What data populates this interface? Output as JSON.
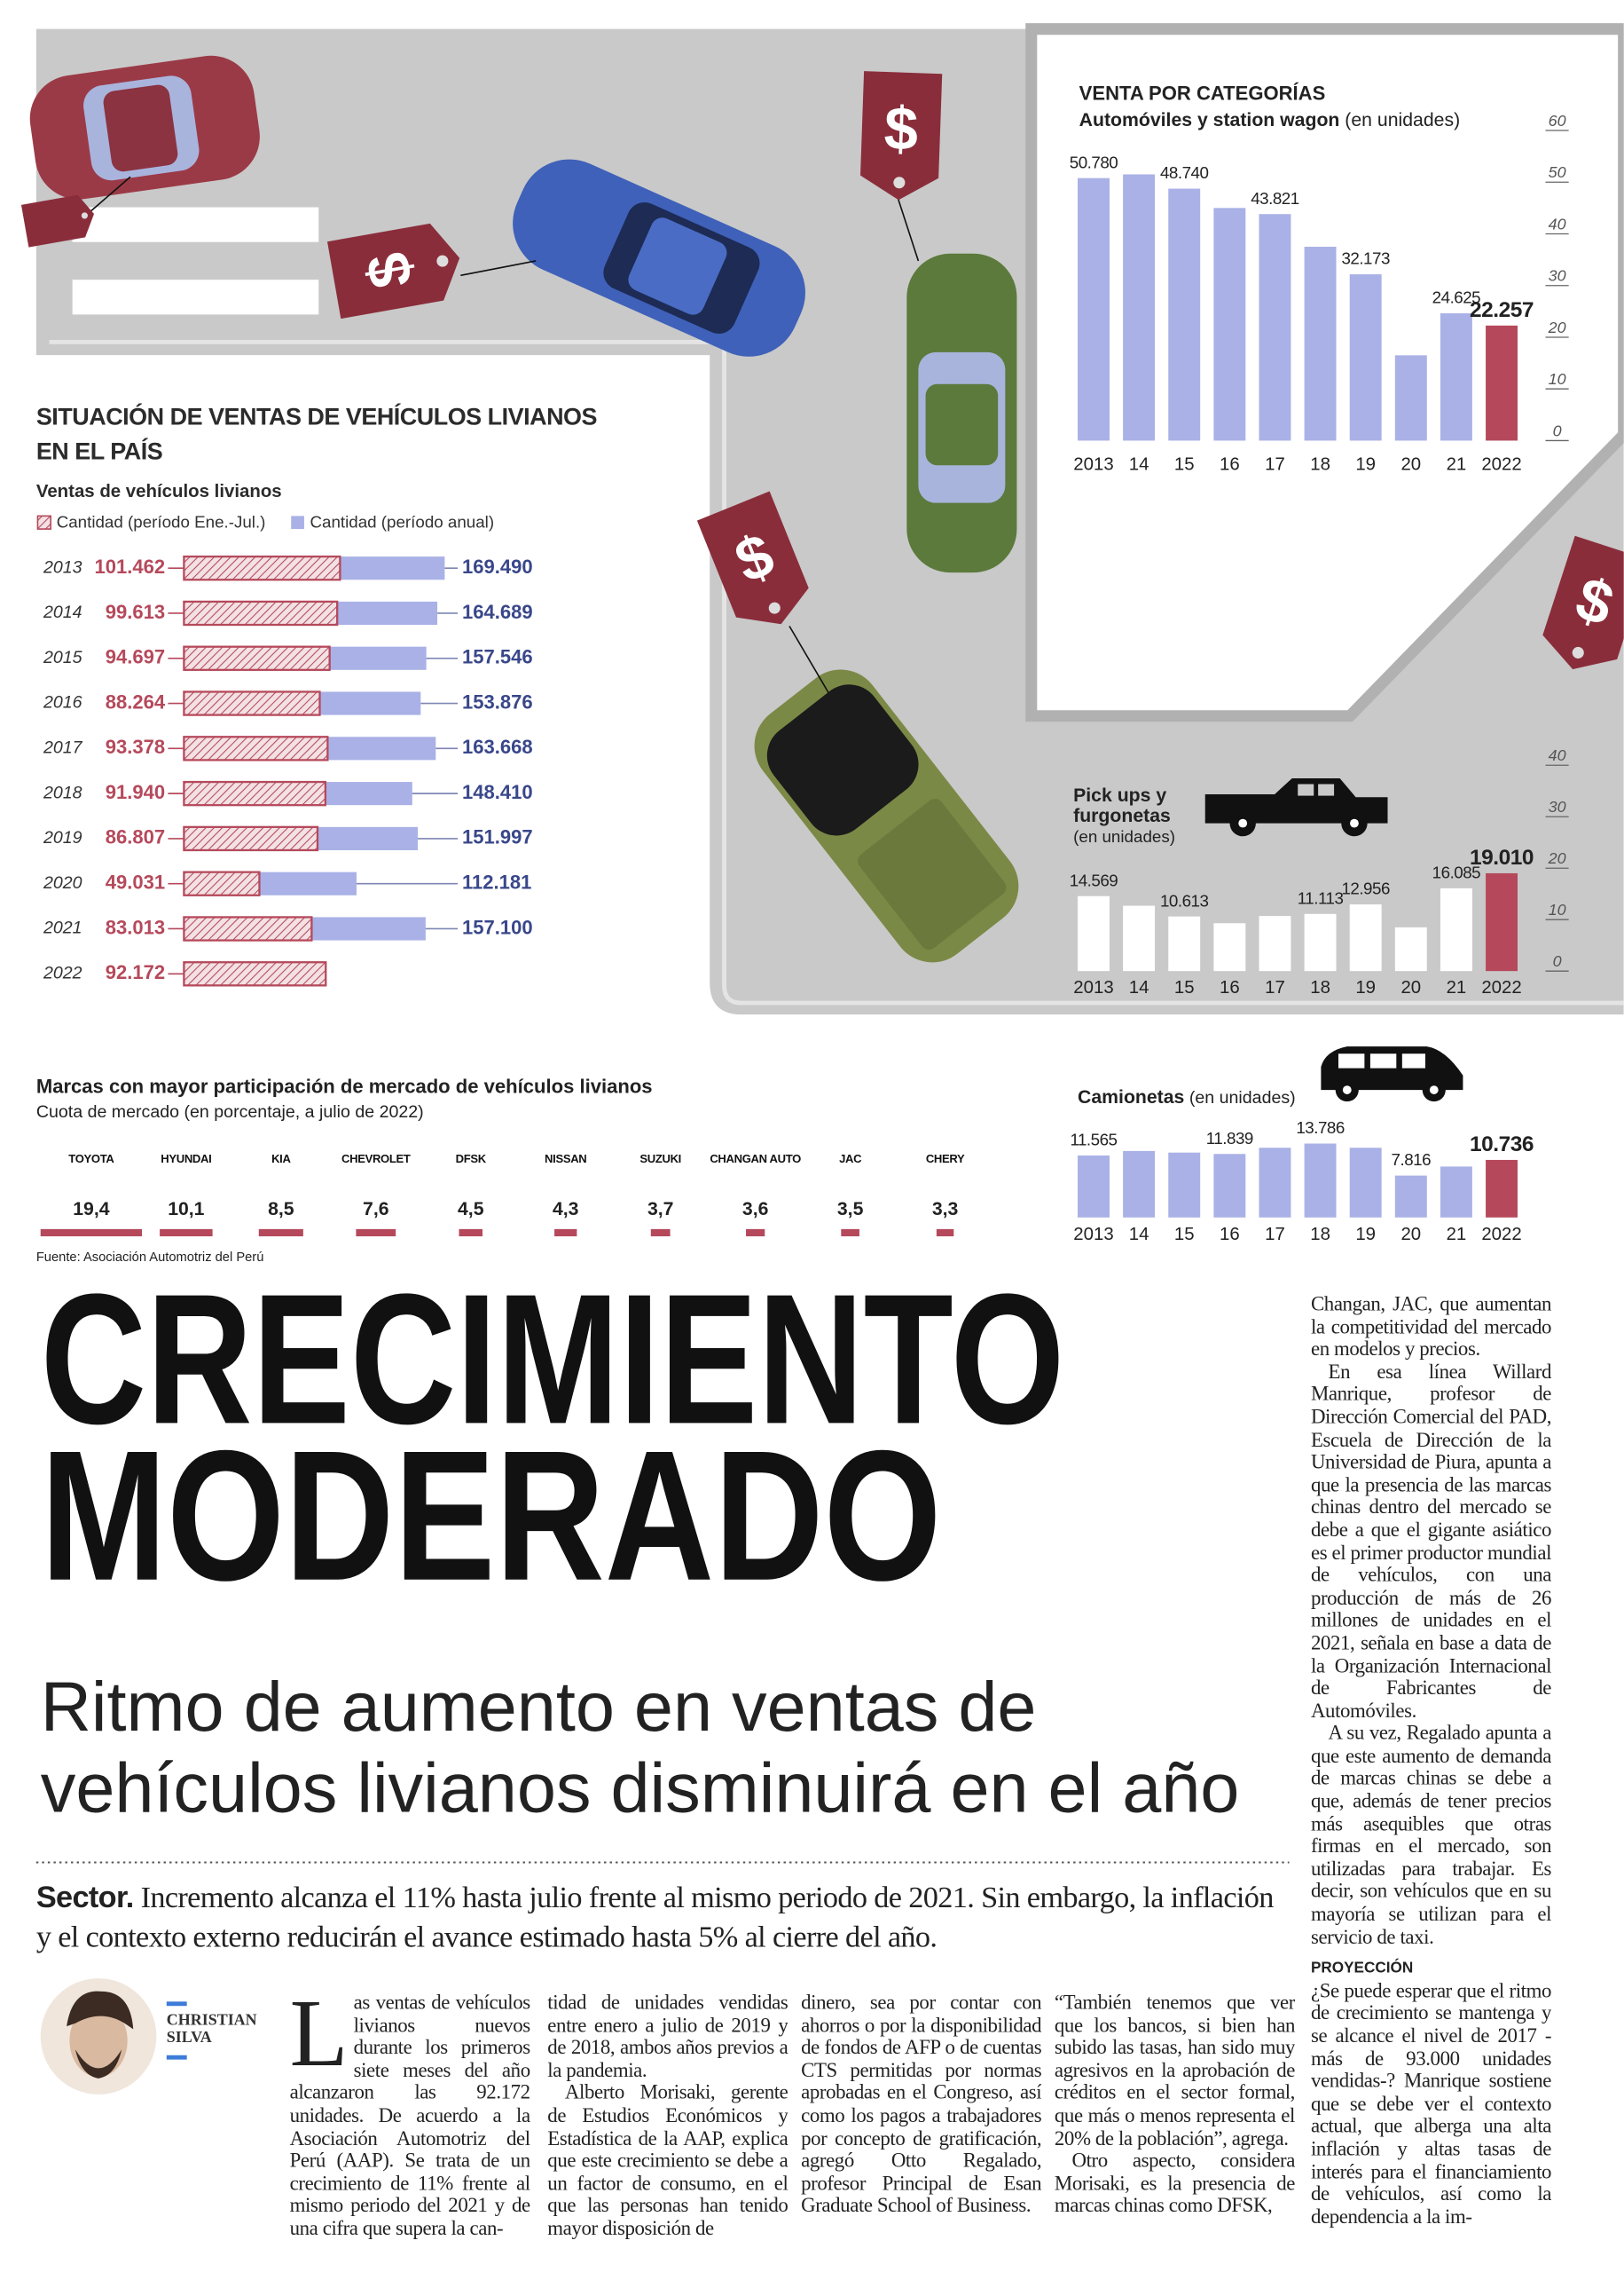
{
  "chart_data": [
    {
      "type": "hbar",
      "title": "SITUACIÓN DE VENTAS DE VEHÍCULOS LIVIANOS EN EL PAÍS",
      "subtitle": "Ventas de vehículos livianos",
      "categories": [
        "2013",
        "2014",
        "2015",
        "2016",
        "2017",
        "2018",
        "2019",
        "2020",
        "2021",
        "2022"
      ],
      "series": [
        {
          "name": "Cantidad (período Ene.-Jul.)",
          "color": "#b5495b",
          "values": [
            101462,
            99613,
            94697,
            88264,
            93378,
            91940,
            86807,
            49031,
            83013,
            92172
          ],
          "value_labels": [
            "101.462",
            "99.613",
            "94.697",
            "88.264",
            "93.378",
            "91.940",
            "86.807",
            "49.031",
            "83.013",
            "92.172"
          ]
        },
        {
          "name": "Cantidad (período anual)",
          "color": "#a9b1e6",
          "values": [
            169490,
            164689,
            157546,
            153876,
            163668,
            148410,
            151997,
            112181,
            157100,
            null
          ],
          "value_labels": [
            "169.490",
            "164.689",
            "157.546",
            "153.876",
            "163.668",
            "148.410",
            "151.997",
            "112.181",
            "157.100",
            null
          ]
        }
      ]
    },
    {
      "type": "bar",
      "title": "VENTA POR CATEGORÍAS",
      "subtitle": "Automóviles y station wagon",
      "unit": "(en unidades)",
      "categories": [
        "2013",
        "14",
        "15",
        "16",
        "17",
        "18",
        "19",
        "20",
        "21",
        "2022"
      ],
      "values": [
        50.78,
        51.5,
        48.74,
        45.0,
        43.821,
        37.5,
        32.173,
        16.5,
        24.625,
        22.257
      ],
      "value_labels": [
        "50.780",
        null,
        "48.740",
        null,
        "43.821",
        null,
        "32.173",
        null,
        "24.625",
        "22.257"
      ],
      "colors": [
        "#a9b1e6",
        "#a9b1e6",
        "#a9b1e6",
        "#a9b1e6",
        "#a9b1e6",
        "#a9b1e6",
        "#a9b1e6",
        "#a9b1e6",
        "#a9b1e6",
        "#b5495b"
      ],
      "ylim": [
        0,
        60
      ],
      "yticks": [
        0,
        10,
        20,
        30,
        40,
        50,
        60
      ]
    },
    {
      "type": "bar",
      "title": "Pick ups y furgonetas",
      "unit": "(en unidades)",
      "categories": [
        "2013",
        "14",
        "15",
        "16",
        "17",
        "18",
        "19",
        "20",
        "21",
        "2022"
      ],
      "values": [
        14.569,
        12.7,
        10.613,
        9.3,
        10.7,
        11.113,
        12.956,
        8.5,
        16.085,
        19.01
      ],
      "value_labels": [
        "14.569",
        null,
        "10.613",
        null,
        null,
        "11.113",
        "12.956",
        null,
        "16.085",
        "19.010"
      ],
      "colors": [
        "#ffffff",
        "#ffffff",
        "#ffffff",
        "#ffffff",
        "#ffffff",
        "#ffffff",
        "#ffffff",
        "#ffffff",
        "#ffffff",
        "#b5495b"
      ],
      "ylim": [
        0,
        40
      ],
      "yticks": [
        0,
        10,
        20,
        30,
        40
      ]
    },
    {
      "type": "bar",
      "title": "Camionetas",
      "unit": "(en unidades)",
      "categories": [
        "2013",
        "14",
        "15",
        "16",
        "17",
        "18",
        "19",
        "20",
        "21",
        "2022"
      ],
      "values": [
        11565,
        12400,
        12100,
        11839,
        13000,
        13786,
        13000,
        7816,
        9500,
        10736
      ],
      "value_labels": [
        "11.565",
        null,
        null,
        "11.839",
        null,
        "13.786",
        null,
        "7.816",
        null,
        "10.736"
      ],
      "colors": [
        "#a9b1e6",
        "#a9b1e6",
        "#a9b1e6",
        "#a9b1e6",
        "#a9b1e6",
        "#a9b1e6",
        "#a9b1e6",
        "#a9b1e6",
        "#a9b1e6",
        "#b5495b"
      ]
    },
    {
      "type": "share",
      "title": "Marcas con mayor participación de mercado de vehículos livianos",
      "subtitle": "Cuota de mercado (en porcentaje, a julio de 2022)",
      "categories": [
        "TOYOTA",
        "HYUNDAI",
        "KIA",
        "CHEVROLET",
        "DFSK",
        "NISSAN",
        "SUZUKI",
        "CHANGAN AUTO",
        "JAC",
        "CHERY"
      ],
      "values": [
        19.4,
        10.1,
        8.5,
        7.6,
        4.5,
        4.3,
        3.7,
        3.6,
        3.5,
        3.3
      ],
      "value_labels": [
        "19,4",
        "10,1",
        "8,5",
        "7,6",
        "4,5",
        "4,3",
        "3,7",
        "3,6",
        "3,5",
        "3,3"
      ],
      "color": "#b5495b"
    }
  ],
  "source": "Fuente: Asociación Automotriz del Perú",
  "illustration": {
    "price_tag": "$"
  },
  "article": {
    "headline_1": "CRECIMIENTO",
    "headline_2": "MODERADO",
    "subtitle": "Ritmo de aumento en ventas de vehículos livianos disminuirá en el año",
    "lead_label": "Sector.",
    "lead": "Incremento alcanza el 11% hasta julio frente al mismo periodo de 2021. Sin embargo, la inflación y el contexto externo reducirán el avance estimado hasta 5% al cierre del año.",
    "author": "CHRISTIAN SILVA",
    "drop_cap": "L",
    "columns": [
      [
        "as ventas de vehículos livianos nuevos durante los primeros siete meses del año alcanzaron las 92.172 unidades. De acuerdo a la Asociación Automotriz del Perú (AAP). Se trata de un crecimiento de 11% frente al mismo periodo del 2021 y de una cifra que supera la can-"
      ],
      [
        "tidad de unidades vendidas entre enero a julio de 2019 y de 2018, ambos años previos a la pandemia.",
        "Alberto Morisaki, gerente de Estudios Económicos y Estadística de la AAP, explica que este crecimiento se debe a un factor de consumo, en el que las personas han tenido mayor disposición de"
      ],
      [
        "dinero, sea por contar con ahorros o por la disponibilidad de fondos de AFP o de cuentas CTS permitidas por normas aprobadas en el Congreso, así como los pagos a trabajadores por concepto de gratificación, agregó Otto Regalado, profesor Principal de Esan Graduate School of Business."
      ],
      [
        "“También tenemos que ver que los bancos, si bien han subido las tasas, han sido muy agresivos en la aprobación de créditos en el sector formal, que más o menos representa el 20% de la población”, agrega.",
        "Otro aspecto, considera Morisaki, es la presencia de marcas chinas como DFSK,"
      ],
      [
        "Changan, JAC, que aumentan la competitividad del mercado en modelos y precios.",
        "En esa línea Willard Manrique, profesor de Dirección Comercial del PAD, Escuela de Dirección de la Universidad de Piura, apunta a que la presencia de las marcas chinas dentro del mercado se debe a que el gigante asiático es el primer productor mundial de vehículos, con una producción de más de 26 millones de unidades en el 2021, señala en base a data de la Organización Internacional de Fabricantes de Automóviles.",
        "A su vez, Regalado apunta a que este aumento de demanda de marcas chinas se debe a que, además de tener precios más asequibles que otras firmas en el mercado, son utilizadas para trabajar. Es decir, son vehículos que en su mayoría se utilizan para el servicio de taxi."
      ]
    ],
    "projection_heading": "PROYECCIÓN",
    "projection": [
      "¿Se puede esperar que el ritmo de crecimiento se mantenga y se alcance el nivel de 2017 -más de 93.000 unidades vendidas-? Manrique sostiene que se debe ver el contexto actual, que alberga una alta inflación y altas tasas de interés para el financiamiento de vehículos, así como la dependencia a la im-"
    ]
  }
}
